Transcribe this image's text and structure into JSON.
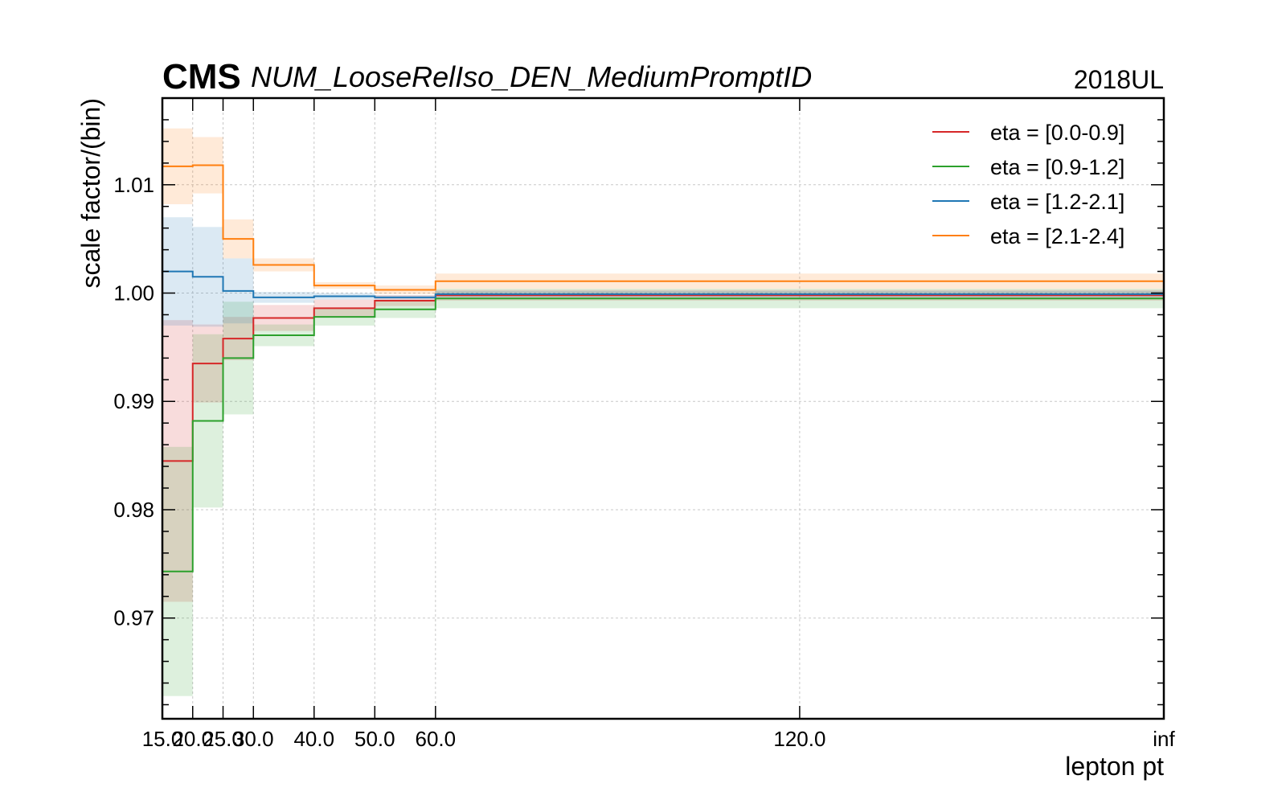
{
  "figure": {
    "logo": "CMS",
    "experiment_label": "NUM_LooseRelIso_DEN_MediumPromptID",
    "lumi_label": "2018UL"
  },
  "chart_data": {
    "type": "line",
    "step": true,
    "xlabel": "lepton pt",
    "ylabel": "scale factor/(bin)",
    "x_edges_labels": [
      "15.0",
      "20.0",
      "25.0",
      "30.0",
      "40.0",
      "50.0",
      "60.0",
      "120.0",
      "inf"
    ],
    "y_ticks": [
      0.97,
      0.98,
      0.99,
      1.0,
      1.01
    ],
    "y_tick_labels": [
      "0.97",
      "0.98",
      "0.99",
      "1.00",
      "1.01"
    ],
    "ylim": [
      0.9607,
      1.018
    ],
    "grid": true,
    "legend_position": "top-right",
    "series": [
      {
        "name": "eta = [0.0-0.9]",
        "color": "#d62728",
        "values": [
          0.9845,
          0.9935,
          0.9958,
          0.9977,
          0.9986,
          0.9993,
          0.9998,
          0.9998
        ],
        "err": [
          0.013,
          0.0036,
          0.002,
          0.0012,
          0.0008,
          0.0005,
          0.0005,
          0.0005
        ]
      },
      {
        "name": "eta = [0.9-1.2]",
        "color": "#2ca02c",
        "values": [
          0.9743,
          0.9882,
          0.994,
          0.9961,
          0.9978,
          0.9985,
          0.9995,
          0.9995
        ],
        "err": [
          0.0115,
          0.008,
          0.0052,
          0.001,
          0.0008,
          0.0008,
          0.0009,
          0.0009
        ]
      },
      {
        "name": "eta = [1.2-2.1]",
        "color": "#1f77b4",
        "values": [
          1.002,
          1.0015,
          1.0002,
          0.9996,
          0.9997,
          0.9996,
          0.9999,
          0.9999
        ],
        "err": [
          0.005,
          0.0046,
          0.003,
          0.0005,
          0.0003,
          0.0002,
          0.0003,
          0.0003
        ]
      },
      {
        "name": "eta = [2.1-2.4]",
        "color": "#ff7f0e",
        "values": [
          1.0117,
          1.0118,
          1.005,
          1.0026,
          1.0007,
          1.0003,
          1.0011,
          1.0011
        ],
        "err": [
          0.0035,
          0.0026,
          0.0018,
          0.0006,
          0.0003,
          0.0004,
          0.0007,
          0.0007
        ]
      }
    ]
  }
}
